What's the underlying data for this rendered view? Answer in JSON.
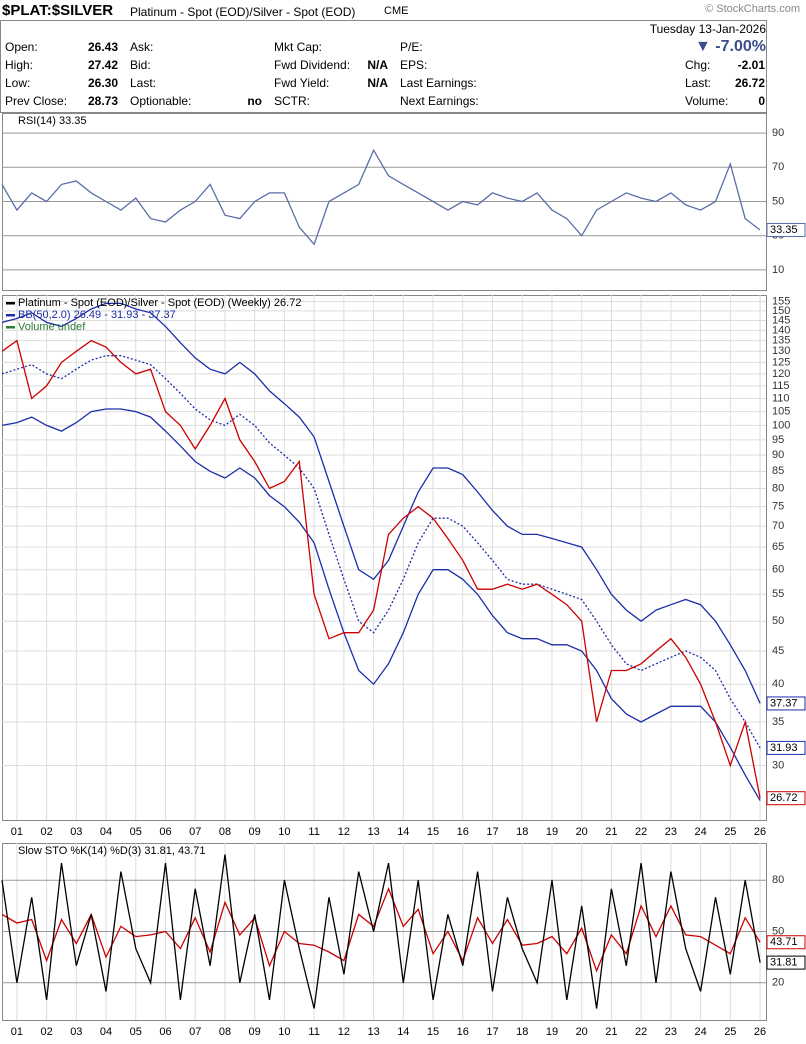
{
  "header": {
    "symbol": "$PLAT:$SILVER",
    "description": "Platinum - Spot (EOD)/Silver - Spot (EOD)",
    "exchange": "CME",
    "source": "© StockCharts.com",
    "date": "Tuesday 13-Jan-2026",
    "change_pct": "▼ -7.00%",
    "fields": [
      [
        [
          "Open:",
          "26.43"
        ],
        [
          "High:",
          "27.42"
        ],
        [
          "Low:",
          "26.30"
        ],
        [
          "Prev Close:",
          "28.73"
        ]
      ],
      [
        [
          "Ask:"
        ],
        [
          "Bid:"
        ],
        [
          "Last:"
        ],
        [
          "Optionable:",
          "no"
        ]
      ],
      [
        [
          "Mkt Cap:"
        ],
        [
          "Fwd Dividend:",
          "N/A"
        ],
        [
          "Fwd Yield:",
          "N/A"
        ],
        [
          "SCTR:"
        ]
      ],
      [
        [
          "P/E:"
        ],
        [
          "EPS:"
        ],
        [
          "Last Earnings:"
        ],
        [
          "Next Earnings:"
        ]
      ],
      [
        [
          "Chg:",
          "-2.01"
        ],
        [
          "Last:",
          "26.72"
        ],
        [
          "Volume:",
          "0"
        ]
      ]
    ]
  },
  "chart_data": [
    {
      "type": "line",
      "title": "RSI(14) 33.35",
      "log": false,
      "grid": true,
      "xlim": [
        2000.5,
        2026.2
      ],
      "ylim": [
        0,
        100
      ],
      "yticks": [
        10,
        30,
        50,
        70,
        90
      ],
      "x": [
        2000.5,
        2001,
        2001.5,
        2002,
        2002.5,
        2003,
        2003.5,
        2004,
        2004.5,
        2005,
        2005.5,
        2006,
        2006.5,
        2007,
        2007.5,
        2008,
        2008.5,
        2009,
        2009.5,
        2010,
        2010.5,
        2011,
        2011.5,
        2012,
        2012.5,
        2013,
        2013.5,
        2014,
        2014.5,
        2015,
        2015.5,
        2016,
        2016.5,
        2017,
        2017.5,
        2018,
        2018.5,
        2019,
        2019.5,
        2020,
        2020.5,
        2021,
        2021.5,
        2022,
        2022.5,
        2023,
        2023.5,
        2024,
        2024.5,
        2025,
        2025.5,
        2026
      ],
      "series": [
        {
          "color": "#5a6fa8",
          "style": "solid",
          "last_label": true,
          "values": [
            60,
            45,
            55,
            50,
            60,
            62,
            55,
            50,
            45,
            52,
            40,
            38,
            45,
            50,
            60,
            42,
            40,
            50,
            55,
            55,
            35,
            25,
            50,
            55,
            60,
            80,
            65,
            60,
            55,
            50,
            45,
            50,
            48,
            55,
            52,
            50,
            55,
            45,
            40,
            30,
            45,
            50,
            55,
            52,
            50,
            55,
            48,
            45,
            50,
            72,
            40,
            33.35
          ]
        }
      ]
    },
    {
      "type": "line",
      "legend": [
        "Platinum - Spot (EOD)/Silver - Spot (EOD) (Weekly) 26.72",
        "BB(50,2.0) 26.49 - 31.93 - 37.37",
        "Volume undef"
      ],
      "legend_colors": [
        "#000000",
        "#1c2ea8",
        "#2e7d32"
      ],
      "log": true,
      "grid": true,
      "xlim": [
        2000.5,
        2026.2
      ],
      "ylim": [
        25,
        157
      ],
      "yticks": [
        30,
        35,
        40,
        45,
        50,
        55,
        60,
        65,
        70,
        75,
        80,
        85,
        90,
        95,
        100,
        105,
        110,
        115,
        120,
        125,
        130,
        135,
        140,
        145,
        150,
        155
      ],
      "xticks": [
        {
          "value": 2001,
          "label": "01"
        },
        {
          "value": 2002,
          "label": "02"
        },
        {
          "value": 2003,
          "label": "03"
        },
        {
          "value": 2004,
          "label": "04"
        },
        {
          "value": 2005,
          "label": "05"
        },
        {
          "value": 2006,
          "label": "06"
        },
        {
          "value": 2007,
          "label": "07"
        },
        {
          "value": 2008,
          "label": "08"
        },
        {
          "value": 2009,
          "label": "09"
        },
        {
          "value": 2010,
          "label": "10"
        },
        {
          "value": 2011,
          "label": "11"
        },
        {
          "value": 2012,
          "label": "12"
        },
        {
          "value": 2013,
          "label": "13"
        },
        {
          "value": 2014,
          "label": "14"
        },
        {
          "value": 2015,
          "label": "15"
        },
        {
          "value": 2016,
          "label": "16"
        },
        {
          "value": 2017,
          "label": "17"
        },
        {
          "value": 2018,
          "label": "18"
        },
        {
          "value": 2019,
          "label": "19"
        },
        {
          "value": 2020,
          "label": "20"
        },
        {
          "value": 2021,
          "label": "21"
        },
        {
          "value": 2022,
          "label": "22"
        },
        {
          "value": 2023,
          "label": "23"
        },
        {
          "value": 2024,
          "label": "24"
        },
        {
          "value": 2025,
          "label": "25"
        },
        {
          "value": 2026,
          "label": "26"
        }
      ],
      "x": [
        2000.5,
        2001,
        2001.5,
        2002,
        2002.5,
        2003,
        2003.5,
        2004,
        2004.5,
        2005,
        2005.5,
        2006,
        2006.5,
        2007,
        2007.5,
        2008,
        2008.5,
        2009,
        2009.5,
        2010,
        2010.5,
        2011,
        2011.5,
        2012,
        2012.5,
        2013,
        2013.5,
        2014,
        2014.5,
        2015,
        2015.5,
        2016,
        2016.5,
        2017,
        2017.5,
        2018,
        2018.5,
        2019,
        2019.5,
        2020,
        2020.5,
        2021,
        2021.5,
        2022,
        2022.5,
        2023,
        2023.5,
        2024,
        2024.5,
        2025,
        2025.5,
        2026
      ],
      "series": [
        {
          "color": "#1c2ea8",
          "style": "solid",
          "last_label": true,
          "values": [
            144,
            146,
            149,
            144,
            142,
            146,
            151,
            154,
            154,
            151,
            149,
            142,
            134,
            127,
            122,
            120,
            125,
            120,
            113,
            108,
            103,
            96,
            82,
            70,
            60,
            58,
            62,
            70,
            79,
            86,
            86,
            84,
            79,
            74,
            70,
            68,
            68,
            67,
            66,
            65,
            60,
            55,
            52,
            50,
            52,
            53,
            54,
            53,
            50,
            46,
            42,
            37.37
          ]
        },
        {
          "color": "#1c2ea8",
          "style": "dotted",
          "last_label": true,
          "values": [
            120,
            122,
            124,
            120,
            118,
            122,
            126,
            128,
            128,
            126,
            124,
            118,
            112,
            106,
            102,
            100,
            104,
            100,
            94,
            90,
            86,
            80,
            68,
            58,
            50,
            48,
            52,
            58,
            66,
            72,
            72,
            70,
            66,
            62,
            58,
            57,
            57,
            56,
            55,
            54,
            50,
            46,
            43,
            42,
            43,
            44,
            45,
            44,
            42,
            38,
            35,
            31.93
          ]
        },
        {
          "color": "#1c2ea8",
          "style": "solid",
          "last_label": false,
          "values": [
            100,
            101,
            103,
            100,
            98,
            101,
            105,
            106,
            106,
            105,
            103,
            98,
            93,
            88,
            85,
            83,
            86,
            83,
            78,
            75,
            71,
            66,
            56,
            48,
            42,
            40,
            43,
            48,
            55,
            60,
            60,
            58,
            55,
            51,
            48,
            47,
            47,
            46,
            46,
            45,
            42,
            38,
            36,
            35,
            36,
            37,
            37,
            37,
            35,
            32,
            29,
            26.49
          ]
        },
        {
          "color": "#cc0000",
          "style": "solid",
          "last_label": true,
          "values": [
            130,
            135,
            110,
            115,
            125,
            130,
            135,
            132,
            125,
            120,
            122,
            105,
            100,
            92,
            100,
            110,
            95,
            88,
            80,
            82,
            88,
            55,
            47,
            48,
            48,
            52,
            68,
            72,
            75,
            72,
            67,
            62,
            56,
            56,
            57,
            56,
            57,
            55,
            53,
            50,
            35,
            42,
            42,
            43,
            45,
            47,
            44,
            40,
            35,
            30,
            35,
            26.72
          ]
        }
      ]
    },
    {
      "type": "line",
      "title": "Slow STO %K(14) %D(3) 31.81, 43.71",
      "log": false,
      "grid": true,
      "xlim": [
        2000.5,
        2026.2
      ],
      "ylim": [
        0,
        100
      ],
      "yticks": [
        20,
        50,
        80
      ],
      "xticks": [
        {
          "value": 2001,
          "label": "01"
        },
        {
          "value": 2002,
          "label": "02"
        },
        {
          "value": 2003,
          "label": "03"
        },
        {
          "value": 2004,
          "label": "04"
        },
        {
          "value": 2005,
          "label": "05"
        },
        {
          "value": 2006,
          "label": "06"
        },
        {
          "value": 2007,
          "label": "07"
        },
        {
          "value": 2008,
          "label": "08"
        },
        {
          "value": 2009,
          "label": "09"
        },
        {
          "value": 2010,
          "label": "10"
        },
        {
          "value": 2011,
          "label": "11"
        },
        {
          "value": 2012,
          "label": "12"
        },
        {
          "value": 2013,
          "label": "13"
        },
        {
          "value": 2014,
          "label": "14"
        },
        {
          "value": 2015,
          "label": "15"
        },
        {
          "value": 2016,
          "label": "16"
        },
        {
          "value": 2017,
          "label": "17"
        },
        {
          "value": 2018,
          "label": "18"
        },
        {
          "value": 2019,
          "label": "19"
        },
        {
          "value": 2020,
          "label": "20"
        },
        {
          "value": 2021,
          "label": "21"
        },
        {
          "value": 2022,
          "label": "22"
        },
        {
          "value": 2023,
          "label": "23"
        },
        {
          "value": 2024,
          "label": "24"
        },
        {
          "value": 2025,
          "label": "25"
        },
        {
          "value": 2026,
          "label": "26"
        }
      ],
      "x": [
        2000.5,
        2001,
        2001.5,
        2002,
        2002.5,
        2003,
        2003.5,
        2004,
        2004.5,
        2005,
        2005.5,
        2006,
        2006.5,
        2007,
        2007.5,
        2008,
        2008.5,
        2009,
        2009.5,
        2010,
        2010.5,
        2011,
        2011.5,
        2012,
        2012.5,
        2013,
        2013.5,
        2014,
        2014.5,
        2015,
        2015.5,
        2016,
        2016.5,
        2017,
        2017.5,
        2018,
        2018.5,
        2019,
        2019.5,
        2020,
        2020.5,
        2021,
        2021.5,
        2022,
        2022.5,
        2023,
        2023.5,
        2024,
        2024.5,
        2025,
        2025.5,
        2026
      ],
      "series": [
        {
          "color": "#cc0000",
          "style": "solid",
          "last_label": true,
          "values": [
            60,
            55,
            57,
            33,
            57,
            43,
            60,
            35,
            53,
            47,
            48,
            50,
            40,
            58,
            38,
            67,
            48,
            58,
            30,
            50,
            43,
            42,
            38,
            33,
            60,
            53,
            75,
            53,
            63,
            37,
            50,
            33,
            58,
            43,
            57,
            42,
            43,
            47,
            37,
            52,
            27,
            48,
            37,
            65,
            47,
            65,
            48,
            47,
            42,
            37,
            58,
            43.71
          ]
        },
        {
          "color": "#000000",
          "style": "solid",
          "last_label": true,
          "values": [
            80,
            20,
            70,
            10,
            90,
            30,
            60,
            15,
            85,
            40,
            20,
            90,
            10,
            75,
            30,
            95,
            20,
            60,
            10,
            80,
            40,
            5,
            70,
            25,
            85,
            50,
            90,
            20,
            80,
            10,
            60,
            30,
            85,
            15,
            70,
            40,
            20,
            80,
            10,
            65,
            5,
            75,
            30,
            90,
            20,
            85,
            40,
            15,
            70,
            25,
            80,
            31.81
          ]
        }
      ]
    }
  ]
}
